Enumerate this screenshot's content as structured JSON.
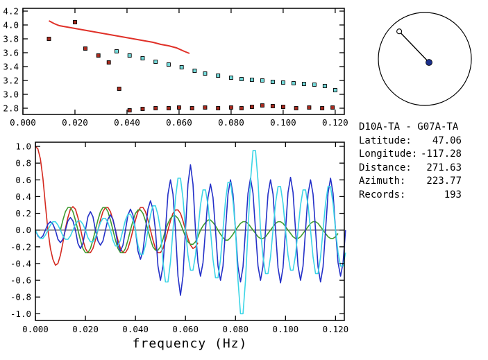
{
  "info_panel": {
    "station_pair": "D10A-TA - G07A-TA",
    "fields": [
      {
        "label": "Latitude:",
        "value": "47.06"
      },
      {
        "label": "Longitude:",
        "value": "-117.28"
      },
      {
        "label": "Distance:",
        "value": "271.63"
      },
      {
        "label": "Azimuth:",
        "value": "223.77"
      },
      {
        "label": "Records:",
        "value": "193"
      }
    ]
  },
  "station_map": {
    "azimuth_deg": 223.77,
    "dot_color": "#1b2f8a",
    "circle_color": "#000000"
  },
  "colors": {
    "axis": "#000000",
    "dispersion_line": "#e03028",
    "raw_squares": "#a82a1e",
    "clean_squares": "#72d9d9",
    "wave_red": "#d42a20",
    "wave_green": "#3f9b30",
    "wave_blue": "#2430c8",
    "wave_cyan": "#3cd5e6"
  },
  "chart_data": [
    {
      "id": "dispersion",
      "type": "scatter",
      "title": "",
      "xlabel": "",
      "ylabel": "",
      "xlim": [
        0,
        0.1235
      ],
      "ylim": [
        2.71,
        4.24
      ],
      "grid": false,
      "xticks": [
        0,
        0.02,
        0.04,
        0.06,
        0.08,
        0.1,
        0.12
      ],
      "xtick_labels": [
        "0.000",
        "0.020",
        "0.040",
        "0.060",
        "0.080",
        "0.100",
        "0.120"
      ],
      "yticks": [
        2.8,
        3.0,
        3.2,
        3.4,
        3.6,
        3.8,
        4.0,
        4.2
      ],
      "ytick_labels": [
        "2.8",
        "3.0",
        "3.2",
        "3.4",
        "3.6",
        "3.8",
        "4.0",
        "4.2"
      ],
      "series": [
        {
          "name": "smoothed-dispersion-curve",
          "type": "line",
          "color": "#e03028",
          "width": 2,
          "points": [
            [
              0.01,
              4.06
            ],
            [
              0.012,
              4.02
            ],
            [
              0.014,
              3.99
            ],
            [
              0.017,
              3.97
            ],
            [
              0.02,
              3.95
            ],
            [
              0.023,
              3.93
            ],
            [
              0.026,
              3.91
            ],
            [
              0.029,
              3.89
            ],
            [
              0.032,
              3.87
            ],
            [
              0.035,
              3.85
            ],
            [
              0.038,
              3.83
            ],
            [
              0.041,
              3.81
            ],
            [
              0.044,
              3.79
            ],
            [
              0.047,
              3.77
            ],
            [
              0.05,
              3.75
            ],
            [
              0.053,
              3.72
            ],
            [
              0.056,
              3.7
            ],
            [
              0.059,
              3.67
            ],
            [
              0.062,
              3.62
            ],
            [
              0.064,
              3.59
            ]
          ]
        },
        {
          "name": "raw-dispersion-points",
          "type": "squares",
          "color": "#a82a1e",
          "edge": "#000000",
          "points": [
            [
              0.01,
              3.8
            ],
            [
              0.02,
              4.04
            ],
            [
              0.024,
              3.66
            ],
            [
              0.029,
              3.56
            ],
            [
              0.033,
              3.46
            ],
            [
              0.037,
              3.08
            ],
            [
              0.041,
              2.77
            ],
            [
              0.046,
              2.79
            ],
            [
              0.051,
              2.8
            ],
            [
              0.056,
              2.8
            ],
            [
              0.06,
              2.81
            ],
            [
              0.065,
              2.8
            ],
            [
              0.07,
              2.81
            ],
            [
              0.075,
              2.8
            ],
            [
              0.08,
              2.81
            ],
            [
              0.084,
              2.8
            ],
            [
              0.088,
              2.82
            ],
            [
              0.092,
              2.84
            ],
            [
              0.096,
              2.83
            ],
            [
              0.1,
              2.82
            ],
            [
              0.105,
              2.8
            ],
            [
              0.11,
              2.81
            ],
            [
              0.115,
              2.8
            ],
            [
              0.119,
              2.81
            ]
          ]
        },
        {
          "name": "cleaned-dispersion-points",
          "type": "squares",
          "color": "#72d9d9",
          "edge": "#000000",
          "points": [
            [
              0.036,
              3.62
            ],
            [
              0.041,
              3.56
            ],
            [
              0.046,
              3.52
            ],
            [
              0.051,
              3.47
            ],
            [
              0.056,
              3.43
            ],
            [
              0.061,
              3.39
            ],
            [
              0.066,
              3.34
            ],
            [
              0.07,
              3.3
            ],
            [
              0.075,
              3.27
            ],
            [
              0.08,
              3.24
            ],
            [
              0.084,
              3.22
            ],
            [
              0.088,
              3.21
            ],
            [
              0.092,
              3.2
            ],
            [
              0.096,
              3.18
            ],
            [
              0.1,
              3.17
            ],
            [
              0.104,
              3.16
            ],
            [
              0.108,
              3.15
            ],
            [
              0.112,
              3.14
            ],
            [
              0.116,
              3.12
            ],
            [
              0.12,
              3.06
            ]
          ]
        }
      ]
    },
    {
      "id": "waveforms",
      "type": "line",
      "title": "",
      "xlabel": "frequency (Hz)",
      "ylabel": "",
      "xlim": [
        0,
        0.1235
      ],
      "ylim": [
        -1.08,
        1.05
      ],
      "grid": false,
      "zero_line": true,
      "xticks": [
        0,
        0.02,
        0.04,
        0.06,
        0.08,
        0.1,
        0.12
      ],
      "xtick_labels": [
        "0.000",
        "0.020",
        "0.040",
        "0.060",
        "0.080",
        "0.100",
        "0.120"
      ],
      "yticks": [
        -1.0,
        -0.8,
        -0.6,
        -0.4,
        -0.2,
        0.0,
        0.2,
        0.4,
        0.6,
        0.8,
        1.0
      ],
      "ytick_labels": [
        "-1.0",
        "-0.8",
        "-0.6",
        "-0.4",
        "-0.2",
        "0.0",
        "0.2",
        "0.4",
        "0.6",
        "0.8",
        "1.0"
      ],
      "series": [
        {
          "name": "wave-red",
          "color": "#d42a20",
          "x_start": 0,
          "x_step": 0.001,
          "values": [
            1,
            0.97,
            0.85,
            0.62,
            0.3,
            0,
            -0.22,
            -0.35,
            -0.42,
            -0.4,
            -0.3,
            -0.15,
            0.02,
            0.15,
            0.25,
            0.28,
            0.25,
            0.15,
            0.02,
            -0.12,
            -0.22,
            -0.27,
            -0.27,
            -0.22,
            -0.12,
            0,
            0.12,
            0.22,
            0.27,
            0.27,
            0.22,
            0.12,
            0,
            -0.12,
            -0.22,
            -0.27,
            -0.27,
            -0.22,
            -0.12,
            0,
            0.12,
            0.22,
            0.27,
            0.27,
            0.22,
            0.12,
            0,
            -0.12,
            -0.22,
            -0.27,
            -0.27,
            -0.22,
            -0.12,
            0,
            0.11,
            0.2,
            0.24,
            0.24,
            0.2,
            0.11,
            0,
            -0.1,
            -0.18,
            -0.22,
            -0.2,
            -0.15
          ]
        },
        {
          "name": "wave-green",
          "color": "#3f9b30",
          "x_start": 0.01,
          "x_step": 0.001,
          "values": [
            0,
            0.12,
            0.22,
            0.27,
            0.27,
            0.22,
            0.12,
            0,
            -0.12,
            -0.22,
            -0.27,
            -0.27,
            -0.22,
            -0.12,
            0,
            0.12,
            0.22,
            0.27,
            0.27,
            0.22,
            0.12,
            0,
            -0.12,
            -0.22,
            -0.27,
            -0.27,
            -0.22,
            -0.12,
            0,
            0.11,
            0.2,
            0.24,
            0.24,
            0.2,
            0.11,
            0,
            -0.11,
            -0.2,
            -0.24,
            -0.24,
            -0.2,
            -0.11,
            0,
            0.08,
            0.14,
            0.17,
            0.17,
            0.14,
            0.08,
            0,
            -0.08,
            -0.14,
            -0.17,
            -0.17,
            -0.14,
            -0.08,
            0,
            0.05,
            0.09,
            0.12,
            0.12,
            0.09,
            0.05,
            0,
            -0.05,
            -0.09,
            -0.12,
            -0.12,
            -0.09,
            -0.05,
            0,
            0.04,
            0.08,
            0.1,
            0.1,
            0.08,
            0.04,
            0,
            -0.04,
            -0.08,
            -0.1,
            -0.1,
            -0.08,
            -0.04,
            0,
            0.04,
            0.08,
            0.1,
            0.1,
            0.08,
            0.04,
            0,
            -0.04,
            -0.08,
            -0.1,
            -0.1,
            -0.08,
            -0.04,
            0,
            0.04,
            0.08,
            0.1,
            0.1,
            0.08,
            0.04,
            0,
            -0.04,
            -0.08,
            -0.1,
            -0.1,
            -0.08,
            -0.04
          ]
        },
        {
          "name": "wave-blue",
          "color": "#2430c8",
          "x_start": 0,
          "x_step": 0.001,
          "values": [
            0,
            -0.07,
            -0.1,
            -0.07,
            0,
            0.07,
            0.1,
            0.07,
            0,
            -0.11,
            -0.15,
            -0.11,
            0,
            0.11,
            0.15,
            0.11,
            0,
            -0.16,
            -0.22,
            -0.16,
            0,
            0.16,
            0.22,
            0.16,
            0,
            -0.13,
            -0.18,
            -0.13,
            0,
            0.13,
            0.18,
            0.13,
            0,
            -0.18,
            -0.25,
            -0.18,
            0,
            0.18,
            0.25,
            0.18,
            0,
            -0.25,
            -0.35,
            -0.25,
            0,
            0.25,
            0.35,
            0.25,
            0,
            -0.43,
            -0.6,
            -0.43,
            0,
            0.43,
            0.6,
            0.43,
            0,
            -0.55,
            -0.78,
            -0.55,
            0,
            0.55,
            0.78,
            0.55,
            0,
            -0.39,
            -0.55,
            -0.39,
            0,
            0.39,
            0.55,
            0.39,
            0,
            -0.43,
            -0.6,
            -0.43,
            0,
            0.43,
            0.6,
            0.43,
            0,
            -0.44,
            -0.62,
            -0.44,
            0,
            0.44,
            0.62,
            0.44,
            0,
            -0.43,
            -0.6,
            -0.43,
            0,
            0.43,
            0.6,
            0.43,
            0,
            -0.45,
            -0.63,
            -0.45,
            0,
            0.45,
            0.63,
            0.45,
            0,
            -0.43,
            -0.6,
            -0.43,
            0,
            0.43,
            0.6,
            0.43,
            0,
            -0.44,
            -0.62,
            -0.44,
            0,
            0.44,
            0.62,
            0.44,
            0,
            -0.39,
            -0.55,
            -0.39,
            0
          ]
        },
        {
          "name": "wave-cyan",
          "color": "#3cd5e6",
          "x_start": 0,
          "x_step": 0.001,
          "values": [
            0,
            -0.06,
            -0.1,
            -0.1,
            -0.06,
            0,
            0.06,
            0.1,
            0.1,
            0.06,
            0,
            -0.07,
            -0.11,
            -0.11,
            -0.07,
            0,
            0.07,
            0.11,
            0.11,
            0.07,
            0,
            -0.09,
            -0.14,
            -0.14,
            -0.09,
            0,
            0.09,
            0.14,
            0.14,
            0.09,
            0,
            -0.12,
            -0.19,
            -0.19,
            -0.12,
            0,
            0.12,
            0.19,
            0.19,
            0.12,
            0,
            -0.18,
            -0.29,
            -0.29,
            -0.18,
            0,
            0.18,
            0.29,
            0.29,
            0.18,
            0,
            -0.38,
            -0.62,
            -0.62,
            -0.38,
            0,
            0.38,
            0.62,
            0.62,
            0.38,
            0,
            -0.3,
            -0.48,
            -0.48,
            -0.3,
            0,
            0.3,
            0.48,
            0.48,
            0.3,
            0,
            -0.35,
            -0.57,
            -0.57,
            -0.35,
            0,
            0.35,
            0.57,
            0.57,
            0.35,
            0,
            -0.6,
            -1,
            -1,
            -0.6,
            0,
            0.59,
            0.95,
            0.95,
            0.59,
            0,
            -0.32,
            -0.52,
            -0.52,
            -0.32,
            0,
            0.32,
            0.52,
            0.52,
            0.32,
            0,
            -0.3,
            -0.48,
            -0.48,
            -0.3,
            0,
            0.3,
            0.48,
            0.48,
            0.3,
            0,
            -0.32,
            -0.52,
            -0.52,
            -0.32,
            0,
            0.32,
            0.52,
            0.52,
            0.32,
            0,
            -0.27,
            -0.43,
            -0.43,
            -0.27
          ]
        }
      ]
    }
  ]
}
